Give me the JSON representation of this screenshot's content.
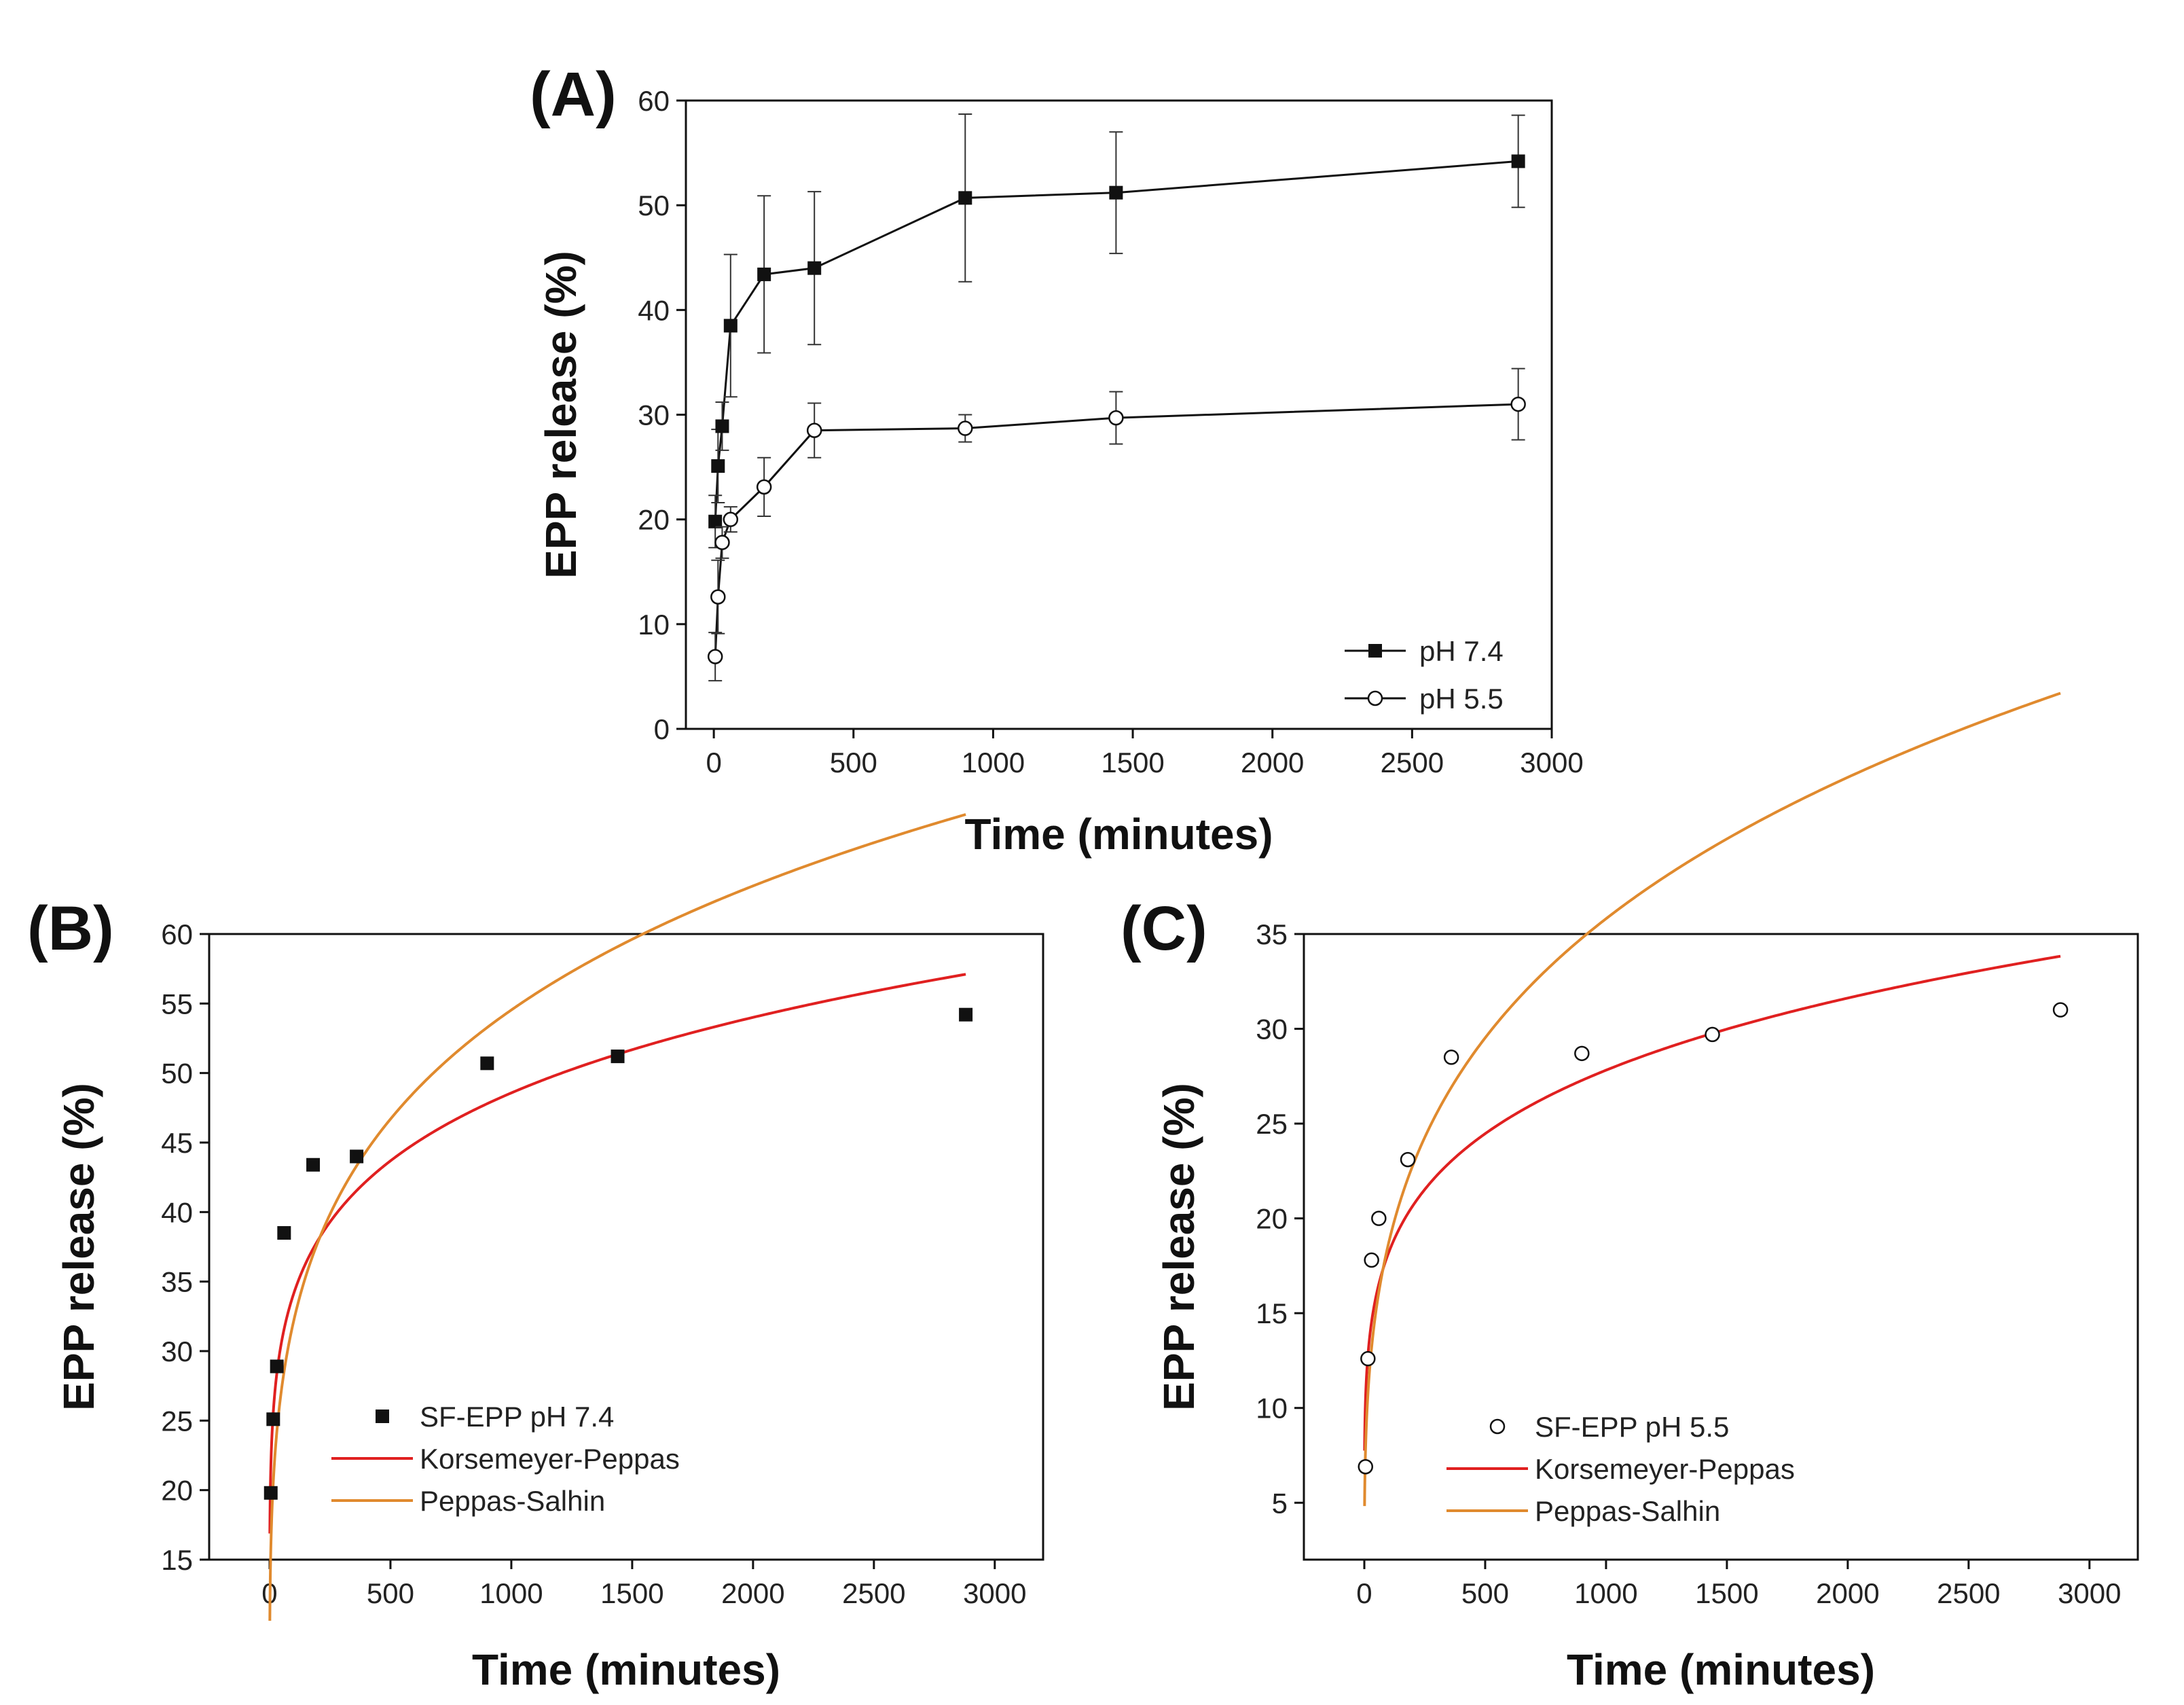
{
  "chart_data": [
    {
      "panel": "(A)",
      "type": "line",
      "xlabel": "Time (minutes)",
      "ylabel": "EPP release (%)",
      "xlim": [
        -100,
        3000
      ],
      "ylim": [
        0,
        60
      ],
      "xticks": [
        0,
        500,
        1000,
        1500,
        2000,
        2500,
        3000
      ],
      "yticks": [
        0,
        10,
        20,
        30,
        40,
        50,
        60
      ],
      "legend_position": "bottom-right",
      "series": [
        {
          "name": "pH 7.4",
          "marker": "filled-square",
          "x": [
            5,
            15,
            30,
            60,
            180,
            360,
            900,
            1440,
            2880
          ],
          "y": [
            19.8,
            25.1,
            28.9,
            38.5,
            43.4,
            44.0,
            50.7,
            51.2,
            54.2
          ],
          "err": [
            2.5,
            3.5,
            2.3,
            6.8,
            7.5,
            7.3,
            8.0,
            5.8,
            4.4
          ]
        },
        {
          "name": "pH 5.5",
          "marker": "open-circle",
          "x": [
            5,
            15,
            30,
            60,
            180,
            360,
            900,
            1440,
            2880
          ],
          "y": [
            6.9,
            12.6,
            17.8,
            20.0,
            23.1,
            28.5,
            28.7,
            29.7,
            31.0
          ],
          "err": [
            2.3,
            3.5,
            1.5,
            1.2,
            2.8,
            2.6,
            1.3,
            2.5,
            3.4
          ]
        }
      ]
    },
    {
      "panel": "(B)",
      "type": "scatter",
      "xlabel": "Time (minutes)",
      "ylabel": "EPP release (%)",
      "xlim": [
        -250,
        3200
      ],
      "ylim": [
        15,
        60
      ],
      "xticks": [
        0,
        500,
        1000,
        1500,
        2000,
        2500,
        3000
      ],
      "yticks": [
        15,
        20,
        25,
        30,
        35,
        40,
        45,
        50,
        55,
        60
      ],
      "legend_position": "bottom-left",
      "points": {
        "name": "SF-EPP pH 7.4",
        "marker": "filled-square",
        "x": [
          5,
          15,
          30,
          60,
          180,
          360,
          900,
          1440,
          2880
        ],
        "y": [
          19.8,
          25.1,
          28.9,
          38.5,
          43.4,
          44.0,
          50.7,
          51.2,
          54.2
        ]
      },
      "fits": [
        {
          "name": "Korsemeyer-Peppas",
          "color": "#e02020",
          "model": "power",
          "k": 16.88,
          "n": 0.153
        },
        {
          "name": "Peppas-Salhin",
          "color": "#e08a2e",
          "model": "peppas-sahlin",
          "k1": 10.8,
          "k2": -0.196,
          "m": 0.25
        }
      ]
    },
    {
      "panel": "(C)",
      "type": "scatter",
      "xlabel": "Time (minutes)",
      "ylabel": "EPP release (%)",
      "xlim": [
        -250,
        3200
      ],
      "ylim": [
        2,
        35
      ],
      "xticks": [
        0,
        500,
        1000,
        1500,
        2000,
        2500,
        3000
      ],
      "yticks": [
        5,
        10,
        15,
        20,
        25,
        30,
        35
      ],
      "legend_position": "bottom-left",
      "points": {
        "name": "SF-EPP pH 5.5",
        "marker": "open-circle",
        "x": [
          5,
          15,
          30,
          60,
          180,
          360,
          900,
          1440,
          2880
        ],
        "y": [
          6.9,
          12.6,
          17.8,
          20.0,
          23.1,
          28.5,
          28.7,
          29.7,
          31.0
        ]
      },
      "fits": [
        {
          "name": "Korsemeyer-Peppas",
          "color": "#e02020",
          "model": "power",
          "k": 7.75,
          "n": 0.185
        },
        {
          "name": "Peppas-Salhin",
          "color": "#e08a2e",
          "model": "peppas-sahlin",
          "k1": 4.87,
          "k2": -0.0456,
          "m": 0.3
        }
      ]
    }
  ]
}
